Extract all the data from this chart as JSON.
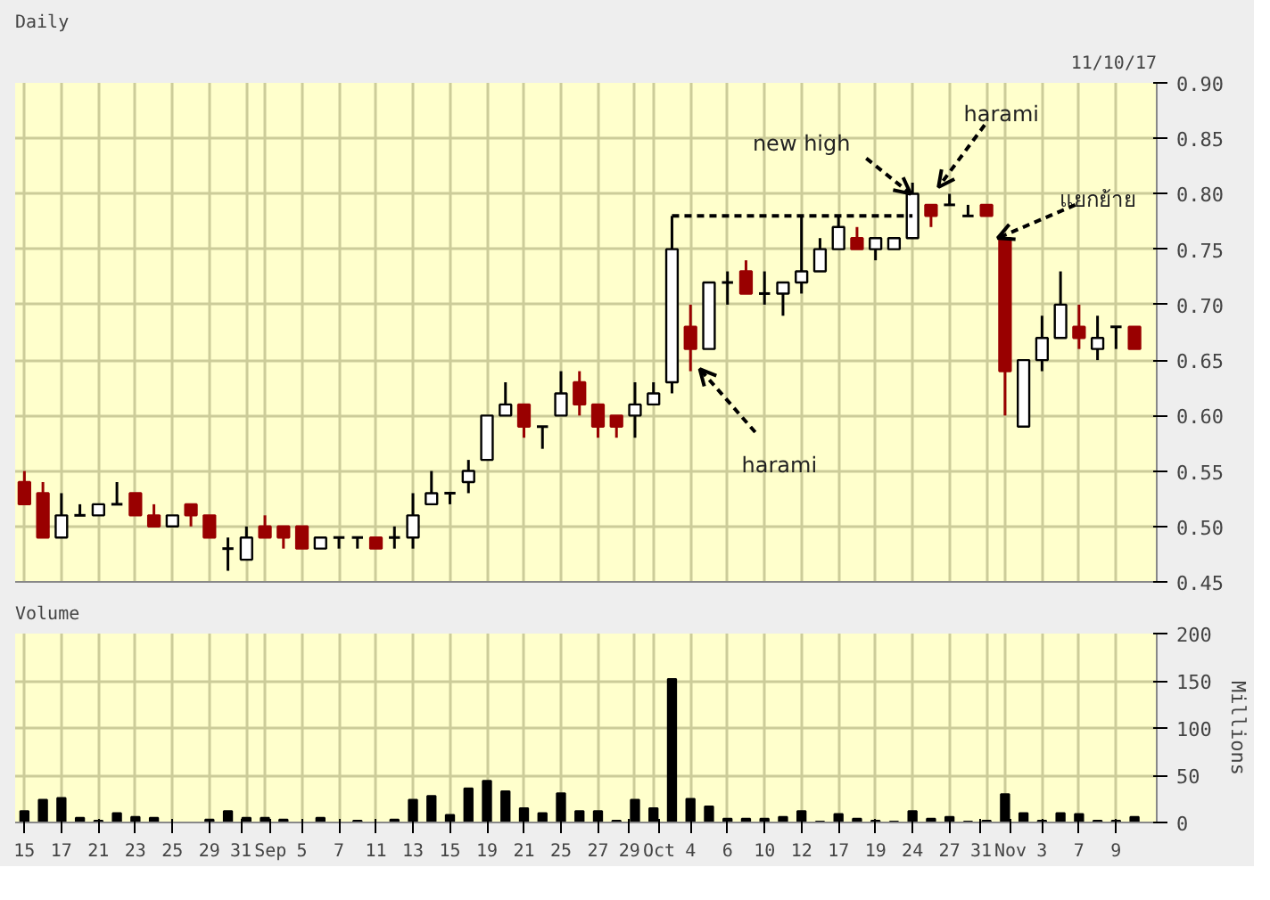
{
  "chart_data": [
    {
      "type": "candlestick",
      "title": "Daily",
      "categories": [
        "15",
        null,
        "17",
        null,
        "21",
        null,
        "23",
        null,
        "25",
        null,
        "29",
        null,
        "31",
        "Sep",
        null,
        "5",
        null,
        "7",
        null,
        "11",
        null,
        "13",
        null,
        "15",
        null,
        "19",
        null,
        "21",
        null,
        "25",
        null,
        "27",
        null,
        "29",
        "Oct",
        null,
        "4",
        null,
        "6",
        null,
        "10",
        null,
        "12",
        null,
        "17",
        null,
        "19",
        null,
        "24",
        null,
        "27",
        null,
        "31",
        "Nov",
        null,
        "3",
        null,
        "7",
        null,
        "9",
        null
      ],
      "ohlc": [
        [
          0.54,
          0.55,
          0.52,
          0.52
        ],
        [
          0.53,
          0.54,
          0.49,
          0.49
        ],
        [
          0.49,
          0.53,
          0.49,
          0.51
        ],
        [
          0.51,
          0.52,
          0.51,
          0.51
        ],
        [
          0.51,
          0.52,
          0.51,
          0.52
        ],
        [
          0.52,
          0.54,
          0.52,
          0.52
        ],
        [
          0.53,
          0.53,
          0.51,
          0.51
        ],
        [
          0.51,
          0.52,
          0.5,
          0.5
        ],
        [
          0.5,
          0.51,
          0.5,
          0.51
        ],
        [
          0.52,
          0.52,
          0.5,
          0.51
        ],
        [
          0.51,
          0.51,
          0.49,
          0.49
        ],
        [
          0.48,
          0.49,
          0.46,
          0.48
        ],
        [
          0.47,
          0.5,
          0.47,
          0.49
        ],
        [
          0.5,
          0.51,
          0.49,
          0.49
        ],
        [
          0.5,
          0.5,
          0.48,
          0.49
        ],
        [
          0.5,
          0.5,
          0.48,
          0.48
        ],
        [
          0.48,
          0.49,
          0.48,
          0.49
        ],
        [
          0.49,
          0.49,
          0.48,
          0.49
        ],
        [
          0.49,
          0.49,
          0.48,
          0.49
        ],
        [
          0.49,
          0.49,
          0.48,
          0.48
        ],
        [
          0.49,
          0.5,
          0.48,
          0.49
        ],
        [
          0.49,
          0.53,
          0.48,
          0.51
        ],
        [
          0.52,
          0.55,
          0.52,
          0.53
        ],
        [
          0.53,
          0.53,
          0.52,
          0.53
        ],
        [
          0.54,
          0.56,
          0.53,
          0.55
        ],
        [
          0.56,
          0.6,
          0.56,
          0.6
        ],
        [
          0.6,
          0.63,
          0.6,
          0.61
        ],
        [
          0.61,
          0.61,
          0.58,
          0.59
        ],
        [
          0.59,
          0.59,
          0.57,
          0.59
        ],
        [
          0.6,
          0.64,
          0.6,
          0.62
        ],
        [
          0.63,
          0.64,
          0.6,
          0.61
        ],
        [
          0.61,
          0.61,
          0.58,
          0.59
        ],
        [
          0.6,
          0.6,
          0.58,
          0.59
        ],
        [
          0.6,
          0.63,
          0.58,
          0.61
        ],
        [
          0.61,
          0.63,
          0.61,
          0.62
        ],
        [
          0.63,
          0.78,
          0.62,
          0.75
        ],
        [
          0.68,
          0.7,
          0.64,
          0.66
        ],
        [
          0.66,
          0.72,
          0.66,
          0.72
        ],
        [
          0.72,
          0.73,
          0.7,
          0.72
        ],
        [
          0.73,
          0.74,
          0.71,
          0.71
        ],
        [
          0.71,
          0.73,
          0.7,
          0.71
        ],
        [
          0.71,
          0.72,
          0.69,
          0.72
        ],
        [
          0.72,
          0.78,
          0.71,
          0.73
        ],
        [
          0.73,
          0.76,
          0.73,
          0.75
        ],
        [
          0.75,
          0.78,
          0.75,
          0.77
        ],
        [
          0.76,
          0.77,
          0.75,
          0.75
        ],
        [
          0.75,
          0.76,
          0.74,
          0.76
        ],
        [
          0.75,
          0.76,
          0.75,
          0.76
        ],
        [
          0.76,
          0.81,
          0.76,
          0.8
        ],
        [
          0.79,
          0.79,
          0.77,
          0.78
        ],
        [
          0.79,
          0.8,
          0.79,
          0.79
        ],
        [
          0.78,
          0.79,
          0.78,
          0.78
        ],
        [
          0.79,
          0.79,
          0.78,
          0.78
        ],
        [
          0.76,
          0.76,
          0.6,
          0.64
        ],
        [
          0.59,
          0.65,
          0.59,
          0.65
        ],
        [
          0.65,
          0.69,
          0.64,
          0.67
        ],
        [
          0.67,
          0.73,
          0.67,
          0.7
        ],
        [
          0.68,
          0.7,
          0.66,
          0.67
        ],
        [
          0.66,
          0.69,
          0.65,
          0.67
        ],
        [
          0.68,
          0.68,
          0.66,
          0.68
        ],
        [
          0.68,
          0.68,
          0.66,
          0.66
        ]
      ],
      "colors": [
        "#990000",
        "#990000",
        "#ffffff",
        "#000000",
        "#ffffff",
        "#000000",
        "#990000",
        "#990000",
        "#ffffff",
        "#990000",
        "#990000",
        "#000000",
        "#ffffff",
        "#990000",
        "#990000",
        "#990000",
        "#ffffff",
        "#000000",
        "#000000",
        "#990000",
        "#000000",
        "#ffffff",
        "#ffffff",
        "#000000",
        "#ffffff",
        "#ffffff",
        "#ffffff",
        "#990000",
        "#000000",
        "#ffffff",
        "#990000",
        "#990000",
        "#990000",
        "#ffffff",
        "#ffffff",
        "#ffffff",
        "#990000",
        "#ffffff",
        "#000000",
        "#990000",
        "#000000",
        "#ffffff",
        "#ffffff",
        "#ffffff",
        "#ffffff",
        "#990000",
        "#ffffff",
        "#ffffff",
        "#ffffff",
        "#990000",
        "#000000",
        "#000000",
        "#990000",
        "#990000",
        "#ffffff",
        "#ffffff",
        "#ffffff",
        "#990000",
        "#ffffff",
        "#000000",
        "#990000"
      ],
      "series": [
        {
          "type": "line",
          "color": "#000000",
          "line_style": "dashed",
          "values": [
            null,
            null,
            null,
            null,
            null,
            null,
            null,
            null,
            null,
            null,
            null,
            null,
            null,
            null,
            null,
            null,
            null,
            null,
            null,
            null,
            null,
            null,
            null,
            null,
            null,
            null,
            null,
            null,
            null,
            null,
            null,
            null,
            null,
            null,
            null,
            0.78,
            0.78,
            0.78,
            0.78,
            0.78,
            0.78,
            0.78,
            0.78,
            0.78,
            0.78,
            0.78,
            0.78,
            0.78,
            0.78,
            null,
            null,
            null,
            null,
            null,
            null,
            null,
            null,
            null,
            null,
            null,
            null
          ]
        }
      ],
      "ylim": [
        0.45,
        0.9
      ],
      "yticks": [
        0.45,
        {
          "value": 0.5,
          "label": "0.50"
        },
        0.55,
        {
          "value": 0.6,
          "label": "0.60"
        },
        0.65,
        {
          "value": 0.7,
          "label": "0.70"
        },
        0.75,
        {
          "value": 0.8,
          "label": "0.80"
        },
        0.85,
        {
          "value": 0.9,
          "label": "0.90"
        }
      ],
      "grid": true,
      "tick_labels": "y",
      "annotations": [
        {
          "text": "new high",
          "x": "24",
          "y": 0.8
        },
        "harami",
        "harami",
        {
          "text": "แยกย้าย",
          "x": "Nov",
          "y": 0.76
        },
        "11/10/17"
      ]
    },
    {
      "type": "bar",
      "title": "Volume",
      "ylabel": "Millions",
      "color": "#000000",
      "categories": [
        "15",
        null,
        "17",
        null,
        "21",
        null,
        "23",
        null,
        "25",
        null,
        "29",
        null,
        "31",
        "Sep",
        null,
        "5",
        null,
        "7",
        null,
        "11",
        null,
        "13",
        null,
        "15",
        null,
        "19",
        null,
        "21",
        null,
        "25",
        null,
        "27",
        null,
        "29",
        "Oct",
        null,
        "4",
        null,
        "6",
        null,
        "10",
        null,
        "12",
        null,
        "17",
        null,
        "19",
        null,
        "24",
        null,
        "27",
        null,
        "31",
        "Nov",
        null,
        "3",
        null,
        "7",
        null,
        "9",
        null
      ],
      "values": [
        12,
        24,
        26,
        5,
        2,
        10,
        6,
        5,
        0,
        0,
        3,
        12,
        5,
        5,
        3,
        0,
        5,
        0,
        2,
        0,
        3,
        24,
        28,
        8,
        36,
        44,
        33,
        15,
        10,
        31,
        12,
        12,
        2,
        24,
        15,
        152,
        25,
        17,
        4,
        4,
        4,
        6,
        12,
        1,
        9,
        4,
        2,
        1,
        12,
        4,
        6,
        1,
        2,
        30,
        10,
        2,
        10,
        9,
        2,
        2,
        6
      ],
      "ylim": [
        0,
        200
      ],
      "yticks": [
        0,
        50,
        100,
        150,
        200
      ],
      "grid": true
    }
  ]
}
